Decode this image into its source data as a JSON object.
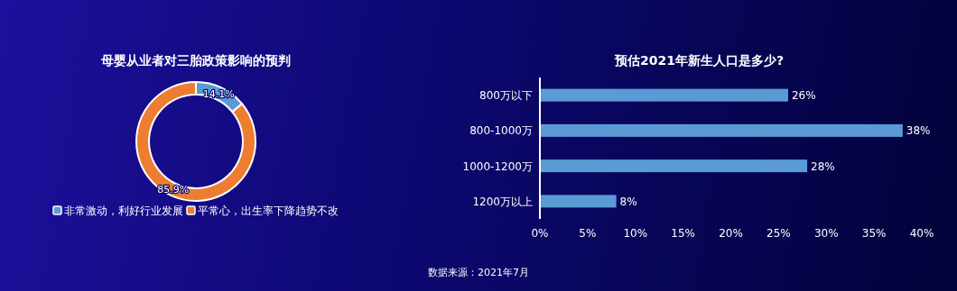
{
  "chart_data": [
    {
      "type": "donut",
      "title": "母婴从业者对三胎政策影响的预判",
      "categories": [
        "非常激动，利好行业发展",
        "平常心，出生率下降趋势不改"
      ],
      "values": [
        14.1,
        85.9
      ],
      "value_labels": [
        "14.1%",
        "85.9%"
      ],
      "colors": [
        "#5b9bd5",
        "#ed7d31"
      ],
      "legend": "bottom"
    },
    {
      "type": "bar",
      "orientation": "horizontal",
      "title": "预估2021年新生人口是多少?",
      "categories": [
        "800万以下",
        "800-1000万",
        "1000-1200万",
        "1200万以上"
      ],
      "values": [
        26,
        38,
        28,
        8
      ],
      "value_labels": [
        "26%",
        "38%",
        "28%",
        "8%"
      ],
      "color": "#5b9bd5",
      "xlim": [
        0,
        40
      ],
      "xticks": [
        {
          "value": 0,
          "label": "0%"
        },
        {
          "value": 5,
          "label": "5%"
        },
        {
          "value": 10,
          "label": "10%"
        },
        {
          "value": 15,
          "label": "15%"
        },
        {
          "value": 20,
          "label": "20%"
        },
        {
          "value": 25,
          "label": "25%"
        },
        {
          "value": 30,
          "label": "30%"
        },
        {
          "value": 35,
          "label": "35%"
        },
        {
          "value": 40,
          "label": "40%"
        }
      ],
      "annotations": [
        "数据来源：2021年7月"
      ]
    }
  ]
}
